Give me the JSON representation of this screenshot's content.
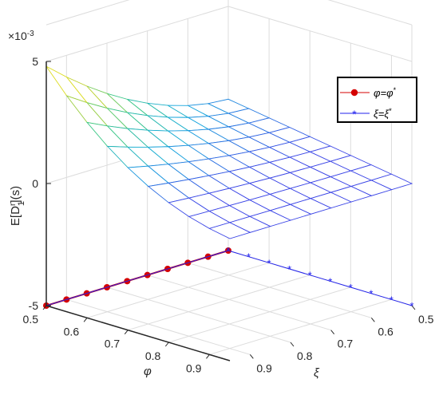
{
  "chart_data": {
    "type": "surface3d",
    "x_axis": {
      "label": "φ",
      "ticks": [
        "0.5",
        "0.6",
        "0.7",
        "0.8",
        "0.9"
      ],
      "range": [
        0.5,
        0.95
      ]
    },
    "y_axis": {
      "label": "ξ",
      "ticks": [
        "0.5",
        "0.6",
        "0.7",
        "0.8",
        "0.9"
      ],
      "range": [
        0.5,
        0.95
      ]
    },
    "z_axis": {
      "label_main": "E[D",
      "label_sub": "1",
      "label_sup": "r",
      "label_tail": "](s)",
      "ticks": [
        "-5",
        "0",
        "5"
      ],
      "range": [
        -0.005,
        0.005
      ],
      "exponent_base": "×10",
      "exponent_power": "-3"
    },
    "grid": true,
    "legend": {
      "placement": "right",
      "items": [
        {
          "label_var": "φ=φ",
          "label_sup": "*",
          "color": "#d40000",
          "marker": "dot"
        },
        {
          "label_var": "ξ=ξ",
          "label_sup": "*",
          "color": "#2222ee",
          "marker": "asterisk"
        }
      ]
    },
    "surface_note": "z increases toward φ=0.5, ξ=0.9; approx 0.001 at (0.5,0.5) to 0.0044 at (0.5,0.95), near 0 for large φ",
    "series": [
      {
        "name": "φ=φ*",
        "color": "#d40000",
        "x": [
          0.5,
          0.5,
          0.5,
          0.5,
          0.5,
          0.5,
          0.5,
          0.5,
          0.5,
          0.5
        ],
        "y": [
          0.5,
          0.55,
          0.6,
          0.65,
          0.7,
          0.75,
          0.8,
          0.85,
          0.9,
          0.95
        ],
        "z": [
          -0.005,
          -0.005,
          -0.005,
          -0.005,
          -0.005,
          -0.005,
          -0.005,
          -0.005,
          -0.005,
          -0.005
        ]
      },
      {
        "name": "ξ=ξ*",
        "color": "#2222ee",
        "x": [
          0.5,
          0.55,
          0.6,
          0.65,
          0.7,
          0.75,
          0.8,
          0.85,
          0.9,
          0.95
        ],
        "y": [
          0.5,
          0.5,
          0.5,
          0.5,
          0.5,
          0.5,
          0.5,
          0.5,
          0.5,
          0.5
        ],
        "z": [
          -0.005,
          -0.005,
          -0.005,
          -0.005,
          -0.005,
          -0.005,
          -0.005,
          -0.005,
          -0.005,
          -0.005
        ]
      }
    ]
  }
}
